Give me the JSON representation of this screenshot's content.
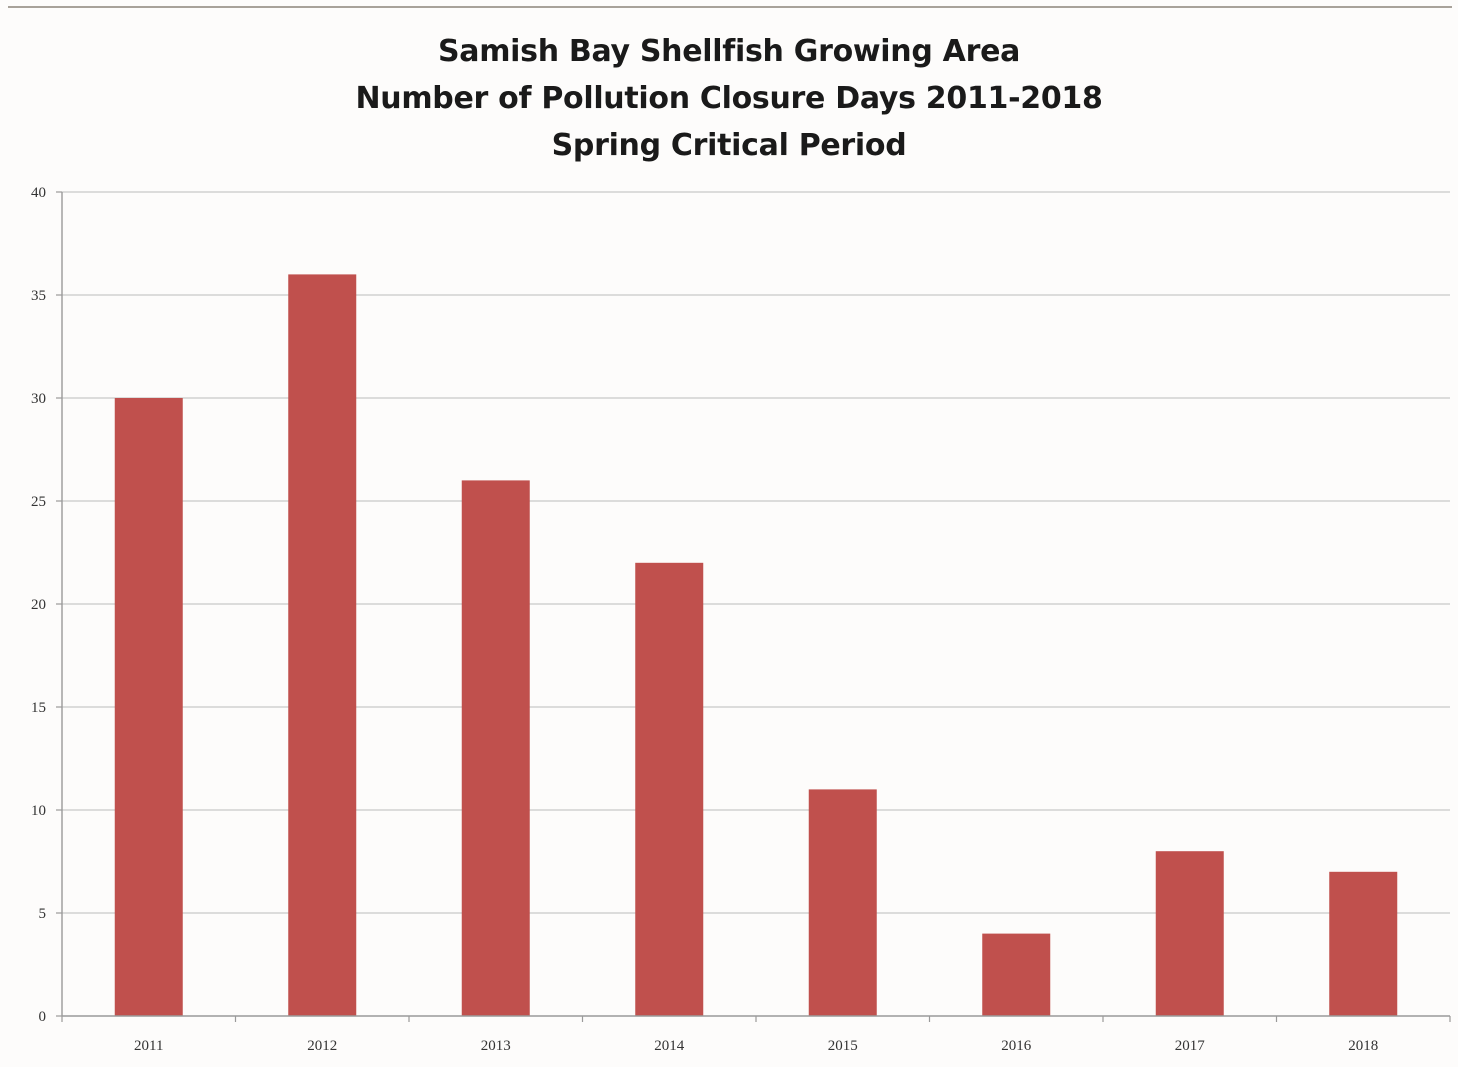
{
  "chart_data": {
    "type": "bar",
    "title_lines": [
      "Samish Bay Shellfish Growing Area",
      "Number of Pollution Closure Days 2011-2018",
      "Spring Critical Period"
    ],
    "categories": [
      "2011",
      "2012",
      "2013",
      "2014",
      "2015",
      "2016",
      "2017",
      "2018"
    ],
    "values": [
      30,
      36,
      26,
      22,
      11,
      4,
      8,
      7
    ],
    "ylim": [
      0,
      40
    ],
    "yticks": [
      0,
      5,
      10,
      15,
      20,
      25,
      30,
      35,
      40
    ],
    "grid": true,
    "legend": "none",
    "bar_color": "#c0504d",
    "grid_color": "#c8c8c8",
    "axis_color": "#9a9a9a"
  }
}
